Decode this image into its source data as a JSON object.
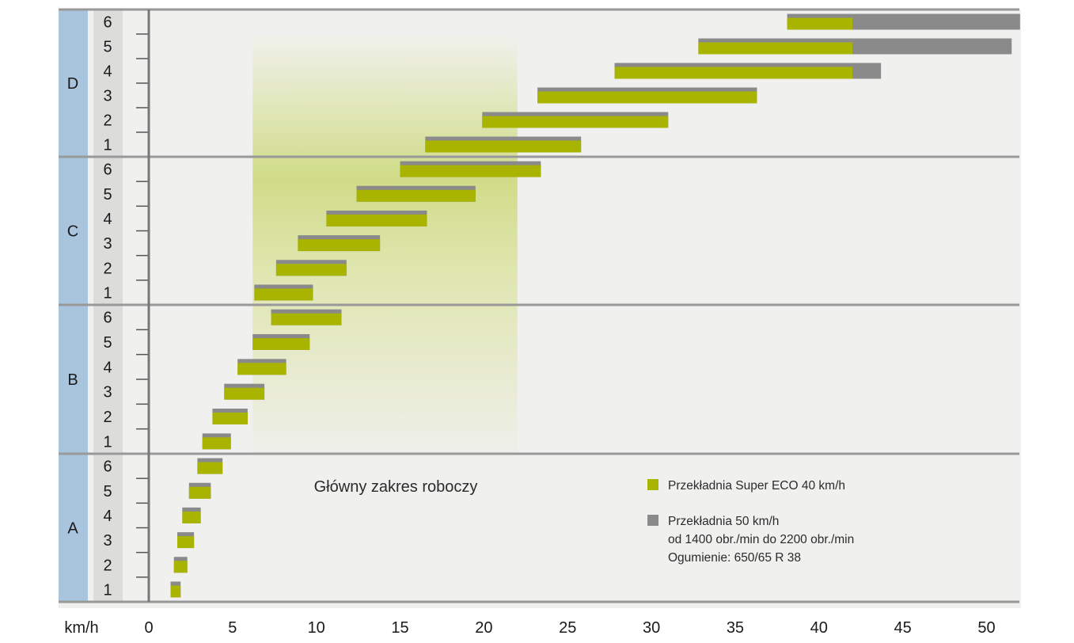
{
  "chart_data": {
    "type": "bar",
    "subtype": "floating-range-gear-chart",
    "x_unit_label": "km/h",
    "xlim": [
      0,
      52
    ],
    "xticks": [
      0,
      5,
      10,
      15,
      20,
      25,
      30,
      35,
      40,
      45,
      50
    ],
    "groups": [
      "A",
      "B",
      "C",
      "D"
    ],
    "gears": [
      "1",
      "2",
      "3",
      "4",
      "5",
      "6"
    ],
    "highlight_zone": {
      "label": "Główny zakres roboczy",
      "x_range": [
        6.2,
        22
      ]
    },
    "legend": [
      {
        "label": "Przekładnia Super ECO 40 km/h",
        "color": "#a8b400"
      },
      {
        "label": "Przekładnia 50 km/h",
        "color": "#8a8a8a"
      },
      {
        "label": "od 1400 obr./min do 2200 obr./min"
      },
      {
        "label": "Ogumienie: 650/65 R 38"
      }
    ],
    "series": [
      {
        "name": "Przekładnia Super ECO 40 km/h",
        "color": "#a8b400",
        "ranges": {
          "A": [
            [
              1.3,
              1.9
            ],
            [
              1.5,
              2.3
            ],
            [
              1.7,
              2.7
            ],
            [
              2.0,
              3.1
            ],
            [
              2.4,
              3.7
            ],
            [
              2.9,
              4.4
            ]
          ],
          "B": [
            [
              3.2,
              4.9
            ],
            [
              3.8,
              5.9
            ],
            [
              4.5,
              6.9
            ],
            [
              5.3,
              8.2
            ],
            [
              6.2,
              9.6
            ],
            [
              7.3,
              11.5
            ]
          ],
          "C": [
            [
              6.3,
              9.8
            ],
            [
              7.6,
              11.8
            ],
            [
              8.9,
              13.8
            ],
            [
              10.6,
              16.6
            ],
            [
              12.4,
              19.5
            ],
            [
              15.0,
              23.4
            ]
          ],
          "D": [
            [
              16.5,
              25.8
            ],
            [
              19.9,
              31.0
            ],
            [
              23.2,
              36.3
            ],
            [
              27.8,
              42.0
            ],
            [
              32.8,
              42.0
            ],
            [
              38.1,
              42.0
            ]
          ]
        }
      },
      {
        "name": "Przekładnia 50 km/h",
        "color": "#8a8a8a",
        "ranges": {
          "A": [
            [
              1.3,
              1.9
            ],
            [
              1.5,
              2.3
            ],
            [
              1.7,
              2.7
            ],
            [
              2.0,
              3.1
            ],
            [
              2.4,
              3.7
            ],
            [
              2.9,
              4.4
            ]
          ],
          "B": [
            [
              3.2,
              4.9
            ],
            [
              3.8,
              5.9
            ],
            [
              4.5,
              6.9
            ],
            [
              5.3,
              8.2
            ],
            [
              6.2,
              9.6
            ],
            [
              7.3,
              11.5
            ]
          ],
          "C": [
            [
              6.3,
              9.8
            ],
            [
              7.6,
              11.8
            ],
            [
              8.9,
              13.8
            ],
            [
              10.6,
              16.6
            ],
            [
              12.4,
              19.5
            ],
            [
              15.0,
              23.4
            ]
          ],
          "D": [
            [
              16.5,
              25.8
            ],
            [
              19.9,
              31.0
            ],
            [
              23.2,
              36.3
            ],
            [
              27.8,
              43.7
            ],
            [
              32.8,
              51.5
            ],
            [
              38.1,
              52.0
            ]
          ]
        }
      }
    ]
  },
  "colors": {
    "plot_bg": "#f0f0ef",
    "group_strip": "#a9c4dd",
    "gear_strip": "#dcdcdb",
    "rule": "#999999",
    "zone_top": "#f2f2ee",
    "zone_mid": "#d2dd8c"
  }
}
